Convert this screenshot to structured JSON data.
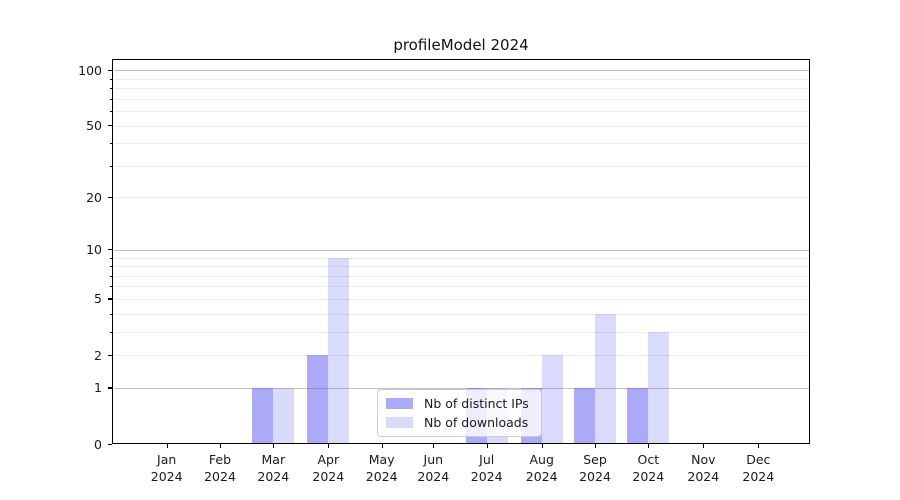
{
  "chart_data": {
    "type": "bar",
    "title": "profileModel 2024",
    "categories": [
      "Jan",
      "Feb",
      "Mar",
      "Apr",
      "May",
      "Jun",
      "Jul",
      "Aug",
      "Sep",
      "Oct",
      "Nov",
      "Dec"
    ],
    "category_sublabel": "2024",
    "series": [
      {
        "name": "Nb of distinct IPs",
        "color": "rgba(85,85,240,0.5)",
        "swatch": "#aaaaf8",
        "values": [
          0,
          0,
          1,
          2,
          0,
          0,
          1,
          1,
          1,
          1,
          0,
          0
        ]
      },
      {
        "name": "Nb of downloads",
        "color": "rgba(85,85,240,0.22)",
        "swatch": "#d9d9fa",
        "values": [
          0,
          0,
          1,
          9,
          0,
          0,
          1,
          2,
          4,
          3,
          0,
          0
        ]
      }
    ],
    "yscale": "symlog-ln(1+v)",
    "ylim": [
      0,
      115
    ],
    "y_ticks": [
      0,
      1,
      2,
      5,
      10,
      20,
      50,
      100
    ],
    "y_major_grid": [
      1,
      10,
      100
    ],
    "y_minor_grid": [
      2,
      3,
      4,
      5,
      6,
      7,
      8,
      9,
      20,
      30,
      40,
      50,
      60,
      70,
      80,
      90
    ],
    "grid": true,
    "legend_position": "lower center",
    "xlabel": "",
    "ylabel": ""
  },
  "colors": {
    "bar_dark": "#aaaaf8",
    "bar_light": "#d9d9fa",
    "major_grid": "#c2c2c2",
    "minor_grid": "#ececec",
    "spine": "#000000",
    "text": "#1a1a1a",
    "legend_border": "#cccccc"
  }
}
